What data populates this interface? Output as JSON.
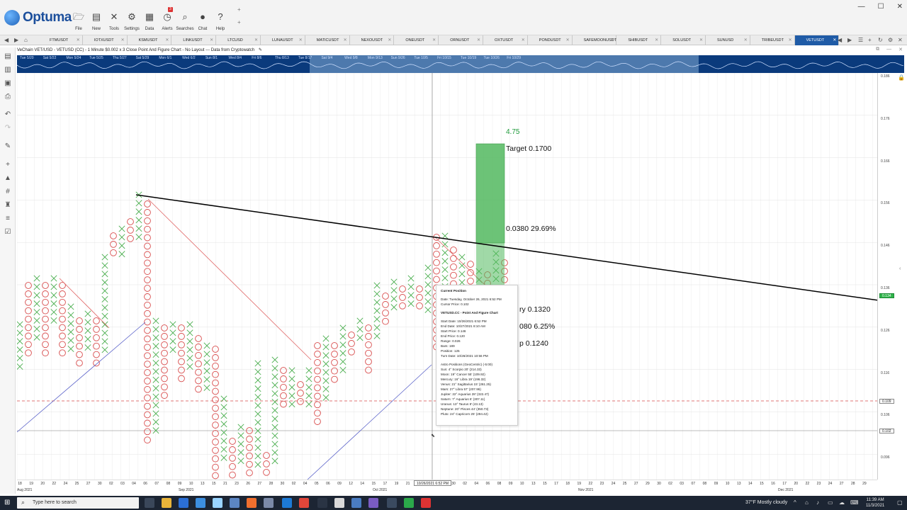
{
  "app": {
    "brand": "Optuma",
    "ribbon_buttons": [
      {
        "label": "File",
        "icon": "folder-icon",
        "glyph": "🗁"
      },
      {
        "label": "New",
        "icon": "new-icon",
        "glyph": "▤"
      },
      {
        "label": "Tools",
        "icon": "tools-icon",
        "glyph": "✕"
      },
      {
        "label": "Settings",
        "icon": "settings-icon",
        "glyph": "⚙"
      },
      {
        "label": "Data",
        "icon": "data-icon",
        "glyph": "▦"
      },
      {
        "label": "Alerts",
        "icon": "alarm-clock-icon",
        "glyph": "◷",
        "badge": "3"
      },
      {
        "label": "Searches",
        "icon": "search-icon",
        "glyph": "⌕"
      },
      {
        "label": "Chat",
        "icon": "chat-icon",
        "glyph": "●"
      },
      {
        "label": "Help",
        "icon": "help-icon",
        "glyph": "?"
      }
    ],
    "window_controls": [
      "—",
      "☐",
      "✕"
    ]
  },
  "tabs": [
    {
      "label": "FTMUSDT"
    },
    {
      "label": "IOTXUSDT"
    },
    {
      "label": "KSMUSDT"
    },
    {
      "label": "LINKUSDT"
    },
    {
      "label": "LTCUSD"
    },
    {
      "label": "LUNAUSDT"
    },
    {
      "label": "MATICUSDT"
    },
    {
      "label": "NEXOUSDT"
    },
    {
      "label": "ONEUSDT"
    },
    {
      "label": "ORNUSDT"
    },
    {
      "label": "OXTUSDT"
    },
    {
      "label": "PONDUSDT"
    },
    {
      "label": "SAFEMOONUSDT"
    },
    {
      "label": "SHIBUSDT"
    },
    {
      "label": "SOLUSDT"
    },
    {
      "label": "SUNUSD"
    },
    {
      "label": "TRIBEUSDT"
    },
    {
      "label": "VETUSDT",
      "active": true
    }
  ],
  "chart_title": "VeChain VET/USD - VETUSD (CC) - 1 Minute $0.002 x 3 Close Point And Figure Chart - No Layout --- Data from Cryptowatch",
  "astro_labels": [
    "Tue 5/20",
    "Sat 5/22",
    "Mon 5/24",
    "Tue 5/25",
    "Thu 5/27",
    "Sat 5/29",
    "Mon 6/1",
    "Wed 6/2",
    "Sun 8/1",
    "Wed 8/4",
    "Fri 8/6",
    "Thu 8/13",
    "Tue 8/17",
    "Sat 9/4",
    "Wed 9/8",
    "Mon 9/13",
    "Sun 9/26",
    "Tue 10/5",
    "Fri 10/15",
    "Tue 10/19",
    "Tue 10/26",
    "Fri 10/29"
  ],
  "y_axis": {
    "labels": [
      "0.186",
      "0.176",
      "0.166",
      "0.156",
      "0.146",
      "0.136",
      "0.126",
      "0.116",
      "0.106",
      "0.096"
    ],
    "tag_current": "0.109",
    "tag_cursor": "0.102",
    "tag_line": "0.134"
  },
  "x_axis": {
    "ticks": [
      "18",
      "19",
      "20",
      "22",
      "24",
      "25",
      "27",
      "30",
      "02",
      "03",
      "04",
      "06",
      "07",
      "08",
      "09",
      "10",
      "13",
      "15",
      "21",
      "23",
      "26",
      "27",
      "28",
      "30",
      "02",
      "04",
      "05",
      "06",
      "09",
      "12",
      "14",
      "15",
      "17",
      "19",
      "21",
      "22",
      "28",
      "29",
      "30",
      "02",
      "04",
      "06",
      "08",
      "09",
      "10",
      "13",
      "15",
      "17",
      "18",
      "19",
      "22",
      "23",
      "24",
      "25",
      "27",
      "29",
      "30",
      "02",
      "03",
      "07",
      "08",
      "09",
      "10",
      "13",
      "14",
      "15",
      "16",
      "17",
      "20",
      "22",
      "23",
      "24",
      "27",
      "28",
      "29"
    ],
    "months": [
      "Aug 2021",
      "Sep 2021",
      "Oct 2021",
      "Nov 2021",
      "Dec 2021"
    ],
    "cursor_date": "10/26/2021 6:52 PM"
  },
  "measure": {
    "ratio": "4.75",
    "target": "Target  0.1700",
    "gain": "0.0380   29.69%",
    "entry": "ry  0.1320",
    "risk": "080   6.25%",
    "stop": "p  0.1240"
  },
  "tooltip": {
    "current_title": "Current Position",
    "date": "Date: Tuesday, October 26, 2021 6:52 PM",
    "cursor_price": "Cursor Price: 0.102",
    "chart_title": "VETUSD.CC - Point And Figure Chart",
    "lines": [
      "Start Date: 10/26/2021 6:52 PM",
      "End Date: 10/27/2021 8:10 AM",
      "Start Price: 0.146",
      "End Price: 0.120",
      "Range: 0.026",
      "Bars: 189",
      "Position: 125",
      "Turn Date: 10/26/2021 10:56 PM"
    ],
    "astro_title": "Astro Positions (GeoCentric) (-5:00)",
    "astro": [
      "Sun: 4° Scorpio 20' (214.33)",
      "Moon: 19° Cancer 55' (109.92)",
      "Mercury: 16° Libra 19' (196.32)",
      "Venus: 21° Sagittarius 15' (261.25)",
      "Mars: 27° Libra 57' (207.96)",
      "Jupiter: 22° Aquarius 28' (322.47)",
      "Saturn: 7° Aquarius 6' (307.11)",
      "Uranus: 13° Taurus 8' (43.13)",
      "Neptune: 20° Pisces 44' (350.73)",
      "Pluto: 24° Capricorn 25' (294.42)"
    ]
  },
  "taskbar": {
    "search_placeholder": "Type here to search",
    "weather": "37°F  Mostly cloudy",
    "time": "11:39 AM",
    "date": "11/3/2021"
  }
}
